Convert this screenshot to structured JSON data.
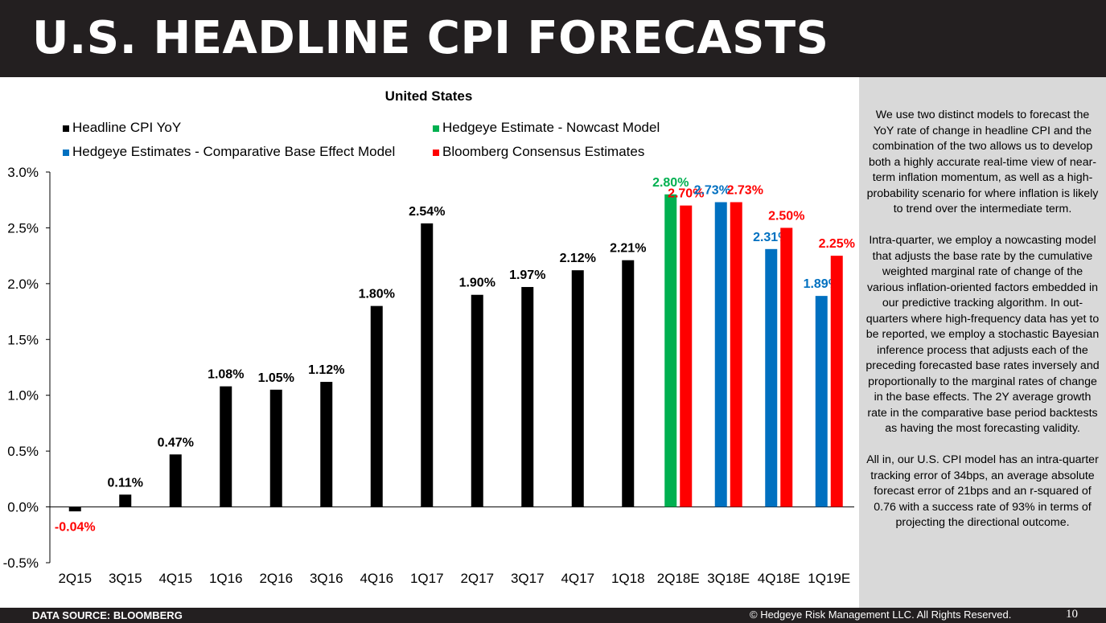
{
  "header": {
    "title": "U.S. HEADLINE CPI FORECASTS"
  },
  "sidebar": {
    "paragraphs": [
      "We use two distinct models to forecast the YoY rate of change in headline CPI and the combination of the two allows us to develop both a highly accurate real-time view of near-term inflation momentum, as well as a high-probability scenario for where inflation is likely to trend over the intermediate term.",
      "Intra-quarter, we employ a nowcasting model that adjusts the base rate by the cumulative weighted marginal rate of change of the various inflation-oriented factors embedded in our predictive tracking algorithm. In out-quarters where high-frequency data has yet to be reported, we employ a stochastic Bayesian inference process that adjusts each of the preceding forecasted base rates inversely and proportionally to the marginal rates of change in the base effects. The 2Y average growth rate in the comparative base period backtests as having the most forecasting validity.",
      "All in, our U.S. CPI model has an intra-quarter tracking error of 34bps, an average absolute forecast error of 21bps and an r-squared of 0.76 with a success rate of 93% in terms of projecting the directional outcome."
    ]
  },
  "footer": {
    "source": "DATA SOURCE: BLOOMBERG",
    "copyright": "© Hedgeye Risk Management LLC. All Rights Reserved.",
    "page": "10"
  },
  "chart_data": {
    "type": "bar",
    "title": "United States",
    "categories": [
      "2Q15",
      "3Q15",
      "4Q15",
      "1Q16",
      "2Q16",
      "3Q16",
      "4Q16",
      "1Q17",
      "2Q17",
      "3Q17",
      "4Q17",
      "1Q18",
      "2Q18E",
      "3Q18E",
      "4Q18E",
      "1Q19E"
    ],
    "series": [
      {
        "name": "Headline CPI YoY",
        "color": "#000000",
        "values": [
          -0.04,
          0.11,
          0.47,
          1.08,
          1.05,
          1.12,
          1.8,
          2.54,
          1.9,
          1.97,
          2.12,
          2.21,
          null,
          null,
          null,
          null
        ],
        "labels": [
          "-0.04%",
          "0.11%",
          "0.47%",
          "1.08%",
          "1.05%",
          "1.12%",
          "1.80%",
          "2.54%",
          "1.90%",
          "1.97%",
          "2.12%",
          "2.21%",
          "",
          "",
          "",
          ""
        ]
      },
      {
        "name": "Hedgeye Estimate - Nowcast Model",
        "color": "#00b050",
        "values": [
          null,
          null,
          null,
          null,
          null,
          null,
          null,
          null,
          null,
          null,
          null,
          null,
          2.8,
          null,
          null,
          null
        ],
        "labels": [
          "",
          "",
          "",
          "",
          "",
          "",
          "",
          "",
          "",
          "",
          "",
          "",
          "2.80%",
          "",
          "",
          ""
        ]
      },
      {
        "name": "Hedgeye Estimates - Comparative Base Effect Model",
        "color": "#0070c0",
        "values": [
          null,
          null,
          null,
          null,
          null,
          null,
          null,
          null,
          null,
          null,
          null,
          null,
          null,
          2.73,
          2.31,
          1.89
        ],
        "labels": [
          "",
          "",
          "",
          "",
          "",
          "",
          "",
          "",
          "",
          "",
          "",
          "",
          "",
          "2.73%",
          "2.31%",
          "1.89%"
        ]
      },
      {
        "name": "Bloomberg Consensus Estimates",
        "color": "#ff0000",
        "values": [
          null,
          null,
          null,
          null,
          null,
          null,
          null,
          null,
          null,
          null,
          null,
          null,
          2.7,
          2.73,
          2.5,
          2.25
        ],
        "labels": [
          "",
          "",
          "",
          "",
          "",
          "",
          "",
          "",
          "",
          "",
          "",
          "",
          "2.70%",
          "2.73%",
          "2.50%",
          "2.25%"
        ]
      }
    ],
    "yticks": [
      "3.0%",
      "2.5%",
      "2.0%",
      "1.5%",
      "1.0%",
      "0.5%",
      "0.0%",
      "-0.5%"
    ],
    "ylim": [
      -0.5,
      3.0
    ],
    "legend_position": "top",
    "grid": false
  }
}
